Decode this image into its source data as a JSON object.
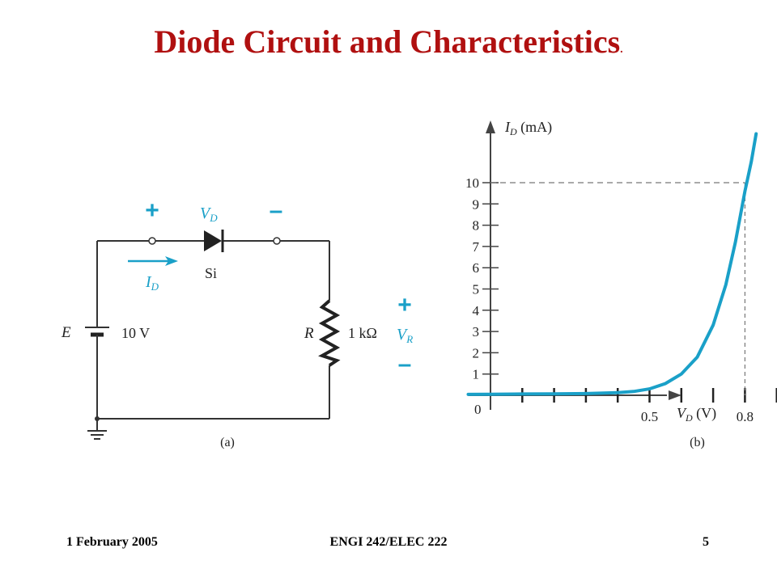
{
  "title": "Diode Circuit and Characteristics",
  "title_suffix": ".",
  "footer": {
    "date": "1 February 2005",
    "course": "ENGI 242/ELEC 222",
    "page": "5"
  },
  "circuit": {
    "plus_sign": "+",
    "minus_sign": "–",
    "vd_main": "V",
    "vd_sub": "D",
    "diode_material": "Si",
    "current_main": "I",
    "current_sub": "D",
    "source_name": "E",
    "source_value": "10 V",
    "resistor_name": "R",
    "resistor_value": "1 kΩ",
    "vr_plus": "+",
    "vr_main": "V",
    "vr_sub": "R",
    "vr_minus": "–",
    "caption": "(a)"
  },
  "chart_data": {
    "type": "line",
    "y_label_main": "I",
    "y_label_sub": "D",
    "y_label_unit": " (mA)",
    "x_label_main": "V",
    "x_label_sub": "D",
    "x_label_unit": " (V)",
    "origin_label": "0",
    "y_ticks": [
      1,
      2,
      3,
      4,
      5,
      6,
      7,
      8,
      9,
      10
    ],
    "x_tick_labels": [
      {
        "value": 0.5,
        "label": "0.5"
      },
      {
        "value": 0.8,
        "label": "0.8"
      }
    ],
    "x_ticks": [
      0.1,
      0.2,
      0.3,
      0.4,
      0.5,
      0.6,
      0.7,
      0.8,
      0.9,
      1.0
    ],
    "xlim": [
      -0.07,
      1.55
    ],
    "ylim": [
      0,
      12.5
    ],
    "reference_point": {
      "x": 0.8,
      "y": 10
    },
    "series": [
      {
        "color": "#1aa0c8",
        "points": [
          [
            -0.07,
            0.04
          ],
          [
            0.0,
            0.05
          ],
          [
            0.1,
            0.06
          ],
          [
            0.2,
            0.07
          ],
          [
            0.3,
            0.08
          ],
          [
            0.4,
            0.12
          ],
          [
            0.45,
            0.18
          ],
          [
            0.5,
            0.3
          ],
          [
            0.55,
            0.55
          ],
          [
            0.6,
            1.0
          ],
          [
            0.65,
            1.8
          ],
          [
            0.7,
            3.3
          ],
          [
            0.74,
            5.2
          ],
          [
            0.77,
            7.2
          ],
          [
            0.8,
            9.6
          ],
          [
            0.82,
            11.0
          ],
          [
            0.835,
            12.3
          ]
        ]
      }
    ],
    "caption": "(b)"
  }
}
